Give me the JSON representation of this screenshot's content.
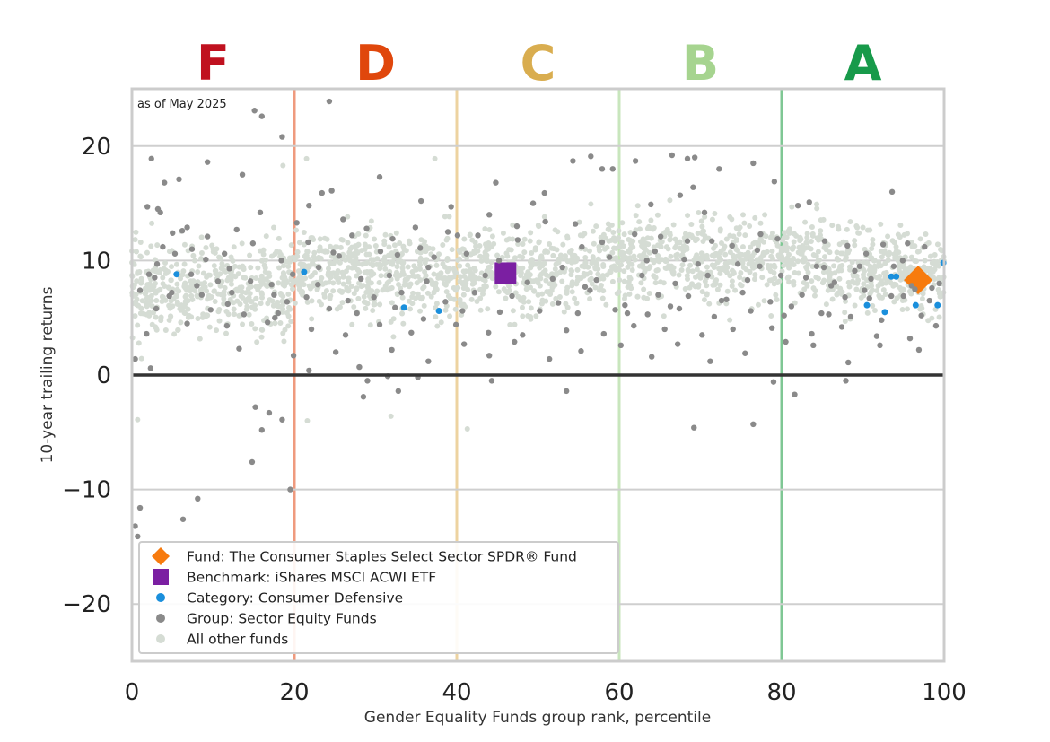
{
  "chart_data": {
    "type": "scatter",
    "title": "",
    "annotation": "as of May 2025",
    "xlabel": "Gender Equality Funds group rank, percentile",
    "ylabel": "10-year trailing returns",
    "xlim": [
      0,
      100
    ],
    "ylim": [
      -25,
      25
    ],
    "x_ticks": [
      0,
      20,
      40,
      60,
      80,
      100
    ],
    "x_tick_labels": [
      "0",
      "20",
      "40",
      "60",
      "80",
      "100"
    ],
    "y_ticks": [
      20,
      10,
      0,
      -10,
      -20
    ],
    "y_tick_labels": [
      "20",
      "10",
      "0",
      "−10",
      "−20"
    ],
    "grid": "horizontal",
    "legend_position": "lower-left",
    "grade_bands": [
      {
        "label": "F",
        "from": 0,
        "to": 20,
        "color": "#c0111f",
        "line_color": "#ef9a7e"
      },
      {
        "label": "D",
        "from": 20,
        "to": 40,
        "color": "#e0470c",
        "line_color": "#edd3a0"
      },
      {
        "label": "C",
        "from": 40,
        "to": 60,
        "color": "#d9ad4f",
        "line_color": "#c8e6bd"
      },
      {
        "label": "B",
        "from": 60,
        "to": 80,
        "color": "#a6d48f",
        "line_color": "#7fc794"
      },
      {
        "label": "A",
        "from": 80,
        "to": 100,
        "color": "#179a4a",
        "line_color": "#a9dcb6"
      }
    ],
    "series": [
      {
        "name": "Fund: The Consumer Staples Select Sector SPDR® Fund",
        "marker": "diamond",
        "color": "#f77b0e",
        "points": [
          [
            96.8,
            8.3
          ]
        ]
      },
      {
        "name": "Benchmark: iShares MSCI ACWI ETF",
        "marker": "square",
        "color": "#7b1fa2",
        "points": [
          [
            46.0,
            8.9
          ]
        ]
      },
      {
        "name": "Category: Consumer Defensive",
        "marker": "circle",
        "color": "#1a8fdc",
        "points": [
          [
            5.5,
            8.8
          ],
          [
            21.2,
            9.0
          ],
          [
            33.5,
            5.9
          ],
          [
            37.8,
            5.6
          ],
          [
            90.5,
            6.1
          ],
          [
            92.7,
            5.5
          ],
          [
            93.5,
            8.6
          ],
          [
            94.1,
            8.6
          ],
          [
            96.5,
            6.1
          ],
          [
            99.2,
            6.1
          ],
          [
            99.9,
            9.8
          ]
        ]
      },
      {
        "name": "Group: Sector Equity Funds",
        "marker": "circle",
        "color": "#8a8a8a",
        "points": [
          [
            0.4,
            -13.2
          ],
          [
            0.7,
            -14.1
          ],
          [
            1.0,
            -11.6
          ],
          [
            8.1,
            -10.8
          ],
          [
            6.3,
            -12.6
          ],
          [
            19.5,
            -10.0
          ],
          [
            14.8,
            -7.6
          ],
          [
            16.0,
            -4.8
          ],
          [
            18.5,
            -3.9
          ],
          [
            15.2,
            -2.8
          ],
          [
            16.9,
            -3.3
          ],
          [
            15.1,
            23.1
          ],
          [
            16.0,
            22.6
          ],
          [
            18.5,
            20.8
          ],
          [
            24.3,
            23.9
          ],
          [
            2.4,
            18.9
          ],
          [
            9.3,
            18.6
          ],
          [
            13.6,
            17.5
          ],
          [
            4.0,
            16.8
          ],
          [
            5.8,
            17.1
          ],
          [
            24.6,
            16.1
          ],
          [
            23.4,
            15.9
          ],
          [
            30.5,
            17.3
          ],
          [
            1.9,
            14.7
          ],
          [
            3.2,
            14.5
          ],
          [
            3.5,
            14.2
          ],
          [
            15.8,
            14.2
          ],
          [
            21.8,
            14.8
          ],
          [
            26.0,
            13.6
          ],
          [
            35.6,
            15.2
          ],
          [
            39.3,
            14.7
          ],
          [
            44.8,
            16.8
          ],
          [
            49.4,
            15.0
          ],
          [
            50.8,
            15.9
          ],
          [
            54.3,
            18.7
          ],
          [
            56.5,
            19.1
          ],
          [
            57.9,
            18.0
          ],
          [
            59.2,
            18.0
          ],
          [
            62.0,
            18.7
          ],
          [
            66.5,
            19.2
          ],
          [
            68.4,
            18.9
          ],
          [
            69.3,
            19.0
          ],
          [
            72.3,
            18.0
          ],
          [
            76.5,
            18.5
          ],
          [
            79.1,
            16.9
          ],
          [
            82.0,
            14.8
          ],
          [
            83.4,
            15.1
          ],
          [
            93.6,
            16.0
          ],
          [
            67.5,
            15.7
          ],
          [
            69.1,
            16.4
          ],
          [
            70.5,
            14.2
          ],
          [
            63.9,
            14.9
          ],
          [
            54.6,
            13.2
          ],
          [
            44.0,
            14.0
          ],
          [
            5.0,
            12.4
          ],
          [
            6.2,
            12.6
          ],
          [
            6.8,
            12.9
          ],
          [
            9.3,
            12.1
          ],
          [
            12.9,
            12.7
          ],
          [
            20.3,
            13.3
          ],
          [
            21.7,
            11.6
          ],
          [
            25.5,
            10.4
          ],
          [
            28.9,
            12.8
          ],
          [
            30.6,
            10.8
          ],
          [
            35.5,
            11.1
          ],
          [
            40.1,
            12.2
          ],
          [
            42.6,
            12.2
          ],
          [
            47.5,
            11.8
          ],
          [
            50.9,
            13.4
          ],
          [
            53.0,
            9.4
          ],
          [
            58.8,
            10.3
          ],
          [
            61.9,
            12.3
          ],
          [
            65.1,
            12.1
          ],
          [
            68.4,
            11.7
          ],
          [
            71.4,
            11.7
          ],
          [
            73.9,
            11.3
          ],
          [
            77.4,
            12.3
          ],
          [
            79.5,
            11.9
          ],
          [
            85.3,
            11.7
          ],
          [
            88.1,
            11.3
          ],
          [
            92.5,
            11.4
          ],
          [
            95.5,
            11.5
          ],
          [
            97.6,
            11.2
          ],
          [
            3.8,
            11.2
          ],
          [
            11.4,
            10.6
          ],
          [
            18.4,
            10.0
          ],
          [
            24.8,
            10.7
          ],
          [
            32.7,
            10.5
          ],
          [
            36.5,
            9.4
          ],
          [
            41.2,
            10.6
          ],
          [
            55.4,
            11.2
          ],
          [
            63.4,
            10.0
          ],
          [
            69.7,
            9.7
          ],
          [
            74.6,
            9.7
          ],
          [
            77.3,
            9.5
          ],
          [
            84.3,
            9.5
          ],
          [
            89.6,
            9.5
          ],
          [
            93.8,
            9.5
          ],
          [
            2.1,
            8.8
          ],
          [
            7.3,
            8.8
          ],
          [
            10.6,
            8.2
          ],
          [
            14.6,
            8.2
          ],
          [
            17.2,
            7.9
          ],
          [
            19.8,
            8.8
          ],
          [
            22.9,
            7.9
          ],
          [
            28.2,
            8.4
          ],
          [
            31.7,
            8.7
          ],
          [
            36.3,
            8.2
          ],
          [
            43.5,
            8.7
          ],
          [
            48.7,
            8.1
          ],
          [
            51.8,
            8.4
          ],
          [
            57.2,
            8.3
          ],
          [
            62.8,
            8.7
          ],
          [
            66.9,
            8.0
          ],
          [
            70.9,
            8.7
          ],
          [
            75.8,
            8.3
          ],
          [
            79.9,
            8.7
          ],
          [
            83.0,
            8.5
          ],
          [
            86.5,
            8.1
          ],
          [
            91.0,
            8.4
          ],
          [
            96.0,
            7.8
          ],
          [
            1.0,
            7.4
          ],
          [
            4.9,
            7.2
          ],
          [
            8.6,
            7.0
          ],
          [
            12.3,
            7.2
          ],
          [
            17.5,
            7.0
          ],
          [
            21.5,
            6.8
          ],
          [
            26.6,
            6.5
          ],
          [
            29.8,
            6.8
          ],
          [
            33.2,
            7.2
          ],
          [
            38.6,
            6.4
          ],
          [
            42.2,
            7.2
          ],
          [
            46.8,
            6.9
          ],
          [
            52.5,
            6.3
          ],
          [
            56.4,
            7.4
          ],
          [
            60.7,
            6.1
          ],
          [
            64.8,
            7.0
          ],
          [
            68.5,
            6.9
          ],
          [
            72.6,
            6.5
          ],
          [
            75.2,
            7.2
          ],
          [
            78.6,
            6.4
          ],
          [
            82.5,
            7.0
          ],
          [
            87.8,
            6.8
          ],
          [
            90.8,
            6.7
          ],
          [
            95.0,
            6.9
          ],
          [
            98.2,
            6.5
          ],
          [
            3.0,
            5.8
          ],
          [
            9.7,
            5.7
          ],
          [
            13.8,
            5.3
          ],
          [
            18.0,
            5.4
          ],
          [
            24.3,
            5.8
          ],
          [
            27.7,
            5.4
          ],
          [
            32.4,
            5.9
          ],
          [
            35.9,
            4.9
          ],
          [
            40.7,
            5.6
          ],
          [
            45.3,
            5.5
          ],
          [
            50.2,
            5.6
          ],
          [
            54.9,
            5.4
          ],
          [
            59.5,
            5.7
          ],
          [
            63.5,
            5.3
          ],
          [
            67.4,
            5.8
          ],
          [
            71.7,
            5.1
          ],
          [
            76.2,
            5.6
          ],
          [
            80.3,
            5.2
          ],
          [
            84.9,
            5.4
          ],
          [
            88.5,
            5.1
          ],
          [
            92.3,
            4.8
          ],
          [
            97.2,
            5.2
          ],
          [
            1.8,
            3.6
          ],
          [
            6.8,
            4.5
          ],
          [
            11.7,
            4.3
          ],
          [
            16.7,
            4.6
          ],
          [
            22.1,
            4.0
          ],
          [
            26.3,
            3.5
          ],
          [
            30.5,
            4.4
          ],
          [
            34.4,
            3.7
          ],
          [
            39.9,
            4.4
          ],
          [
            43.9,
            3.7
          ],
          [
            48.1,
            3.5
          ],
          [
            53.5,
            3.9
          ],
          [
            58.1,
            3.6
          ],
          [
            61.8,
            4.3
          ],
          [
            65.6,
            4.0
          ],
          [
            70.2,
            3.5
          ],
          [
            74.0,
            4.0
          ],
          [
            78.8,
            4.1
          ],
          [
            83.7,
            3.6
          ],
          [
            87.4,
            4.2
          ],
          [
            91.7,
            3.4
          ],
          [
            95.8,
            3.2
          ],
          [
            99.0,
            4.3
          ],
          [
            0.4,
            1.4
          ],
          [
            2.3,
            0.6
          ],
          [
            13.2,
            2.3
          ],
          [
            19.9,
            1.7
          ],
          [
            21.8,
            0.4
          ],
          [
            25.1,
            2.0
          ],
          [
            28.0,
            0.7
          ],
          [
            32.0,
            2.2
          ],
          [
            36.5,
            1.2
          ],
          [
            40.9,
            2.7
          ],
          [
            44.0,
            1.7
          ],
          [
            47.1,
            2.9
          ],
          [
            51.4,
            1.4
          ],
          [
            55.3,
            2.1
          ],
          [
            60.2,
            2.6
          ],
          [
            64.0,
            1.6
          ],
          [
            67.2,
            2.7
          ],
          [
            71.2,
            1.2
          ],
          [
            75.5,
            1.9
          ],
          [
            80.5,
            2.9
          ],
          [
            83.9,
            2.6
          ],
          [
            88.2,
            1.1
          ],
          [
            92.1,
            2.6
          ],
          [
            96.9,
            2.2
          ],
          [
            29.0,
            -0.5
          ],
          [
            31.5,
            -0.1
          ],
          [
            35.2,
            -0.2
          ],
          [
            44.3,
            -0.5
          ],
          [
            79.0,
            -0.6
          ],
          [
            87.9,
            -0.5
          ],
          [
            28.5,
            -1.9
          ],
          [
            32.8,
            -1.4
          ],
          [
            53.5,
            -1.4
          ],
          [
            81.6,
            -1.7
          ],
          [
            69.2,
            -4.6
          ],
          [
            76.5,
            -4.3
          ],
          [
            85.2,
            9.4
          ],
          [
            86.1,
            7.8
          ],
          [
            90.2,
            7.4
          ],
          [
            93.5,
            6.9
          ],
          [
            96.4,
            7.5
          ],
          [
            98.5,
            7.6
          ],
          [
            17.6,
            5.0
          ],
          [
            19.1,
            6.4
          ],
          [
            8.0,
            7.8
          ],
          [
            11.8,
            6.2
          ],
          [
            2.8,
            8.5
          ],
          [
            4.6,
            6.9
          ],
          [
            64.4,
            10.8
          ],
          [
            66.3,
            6.0
          ],
          [
            68.0,
            10.1
          ],
          [
            73.2,
            6.6
          ],
          [
            77.0,
            10.9
          ],
          [
            81.2,
            6.0
          ],
          [
            85.8,
            5.3
          ],
          [
            89.0,
            9.1
          ],
          [
            90.4,
            10.6
          ],
          [
            94.9,
            10.0
          ],
          [
            99.4,
            8.0
          ],
          [
            57.9,
            11.6
          ],
          [
            61.0,
            5.4
          ],
          [
            55.8,
            7.7
          ],
          [
            47.4,
            13.0
          ],
          [
            45.2,
            10.0
          ],
          [
            38.9,
            12.5
          ],
          [
            37.2,
            10.3
          ],
          [
            34.9,
            12.9
          ],
          [
            32.1,
            11.9
          ],
          [
            27.1,
            12.2
          ],
          [
            23.0,
            9.4
          ],
          [
            14.9,
            11.5
          ],
          [
            12.0,
            9.3
          ],
          [
            9.1,
            10.1
          ],
          [
            7.4,
            11.0
          ],
          [
            5.3,
            10.6
          ],
          [
            3.1,
            9.7
          ]
        ]
      },
      {
        "name": "All other funds",
        "marker": "circle",
        "color": "#d5dcd4",
        "points": []
      }
    ]
  }
}
